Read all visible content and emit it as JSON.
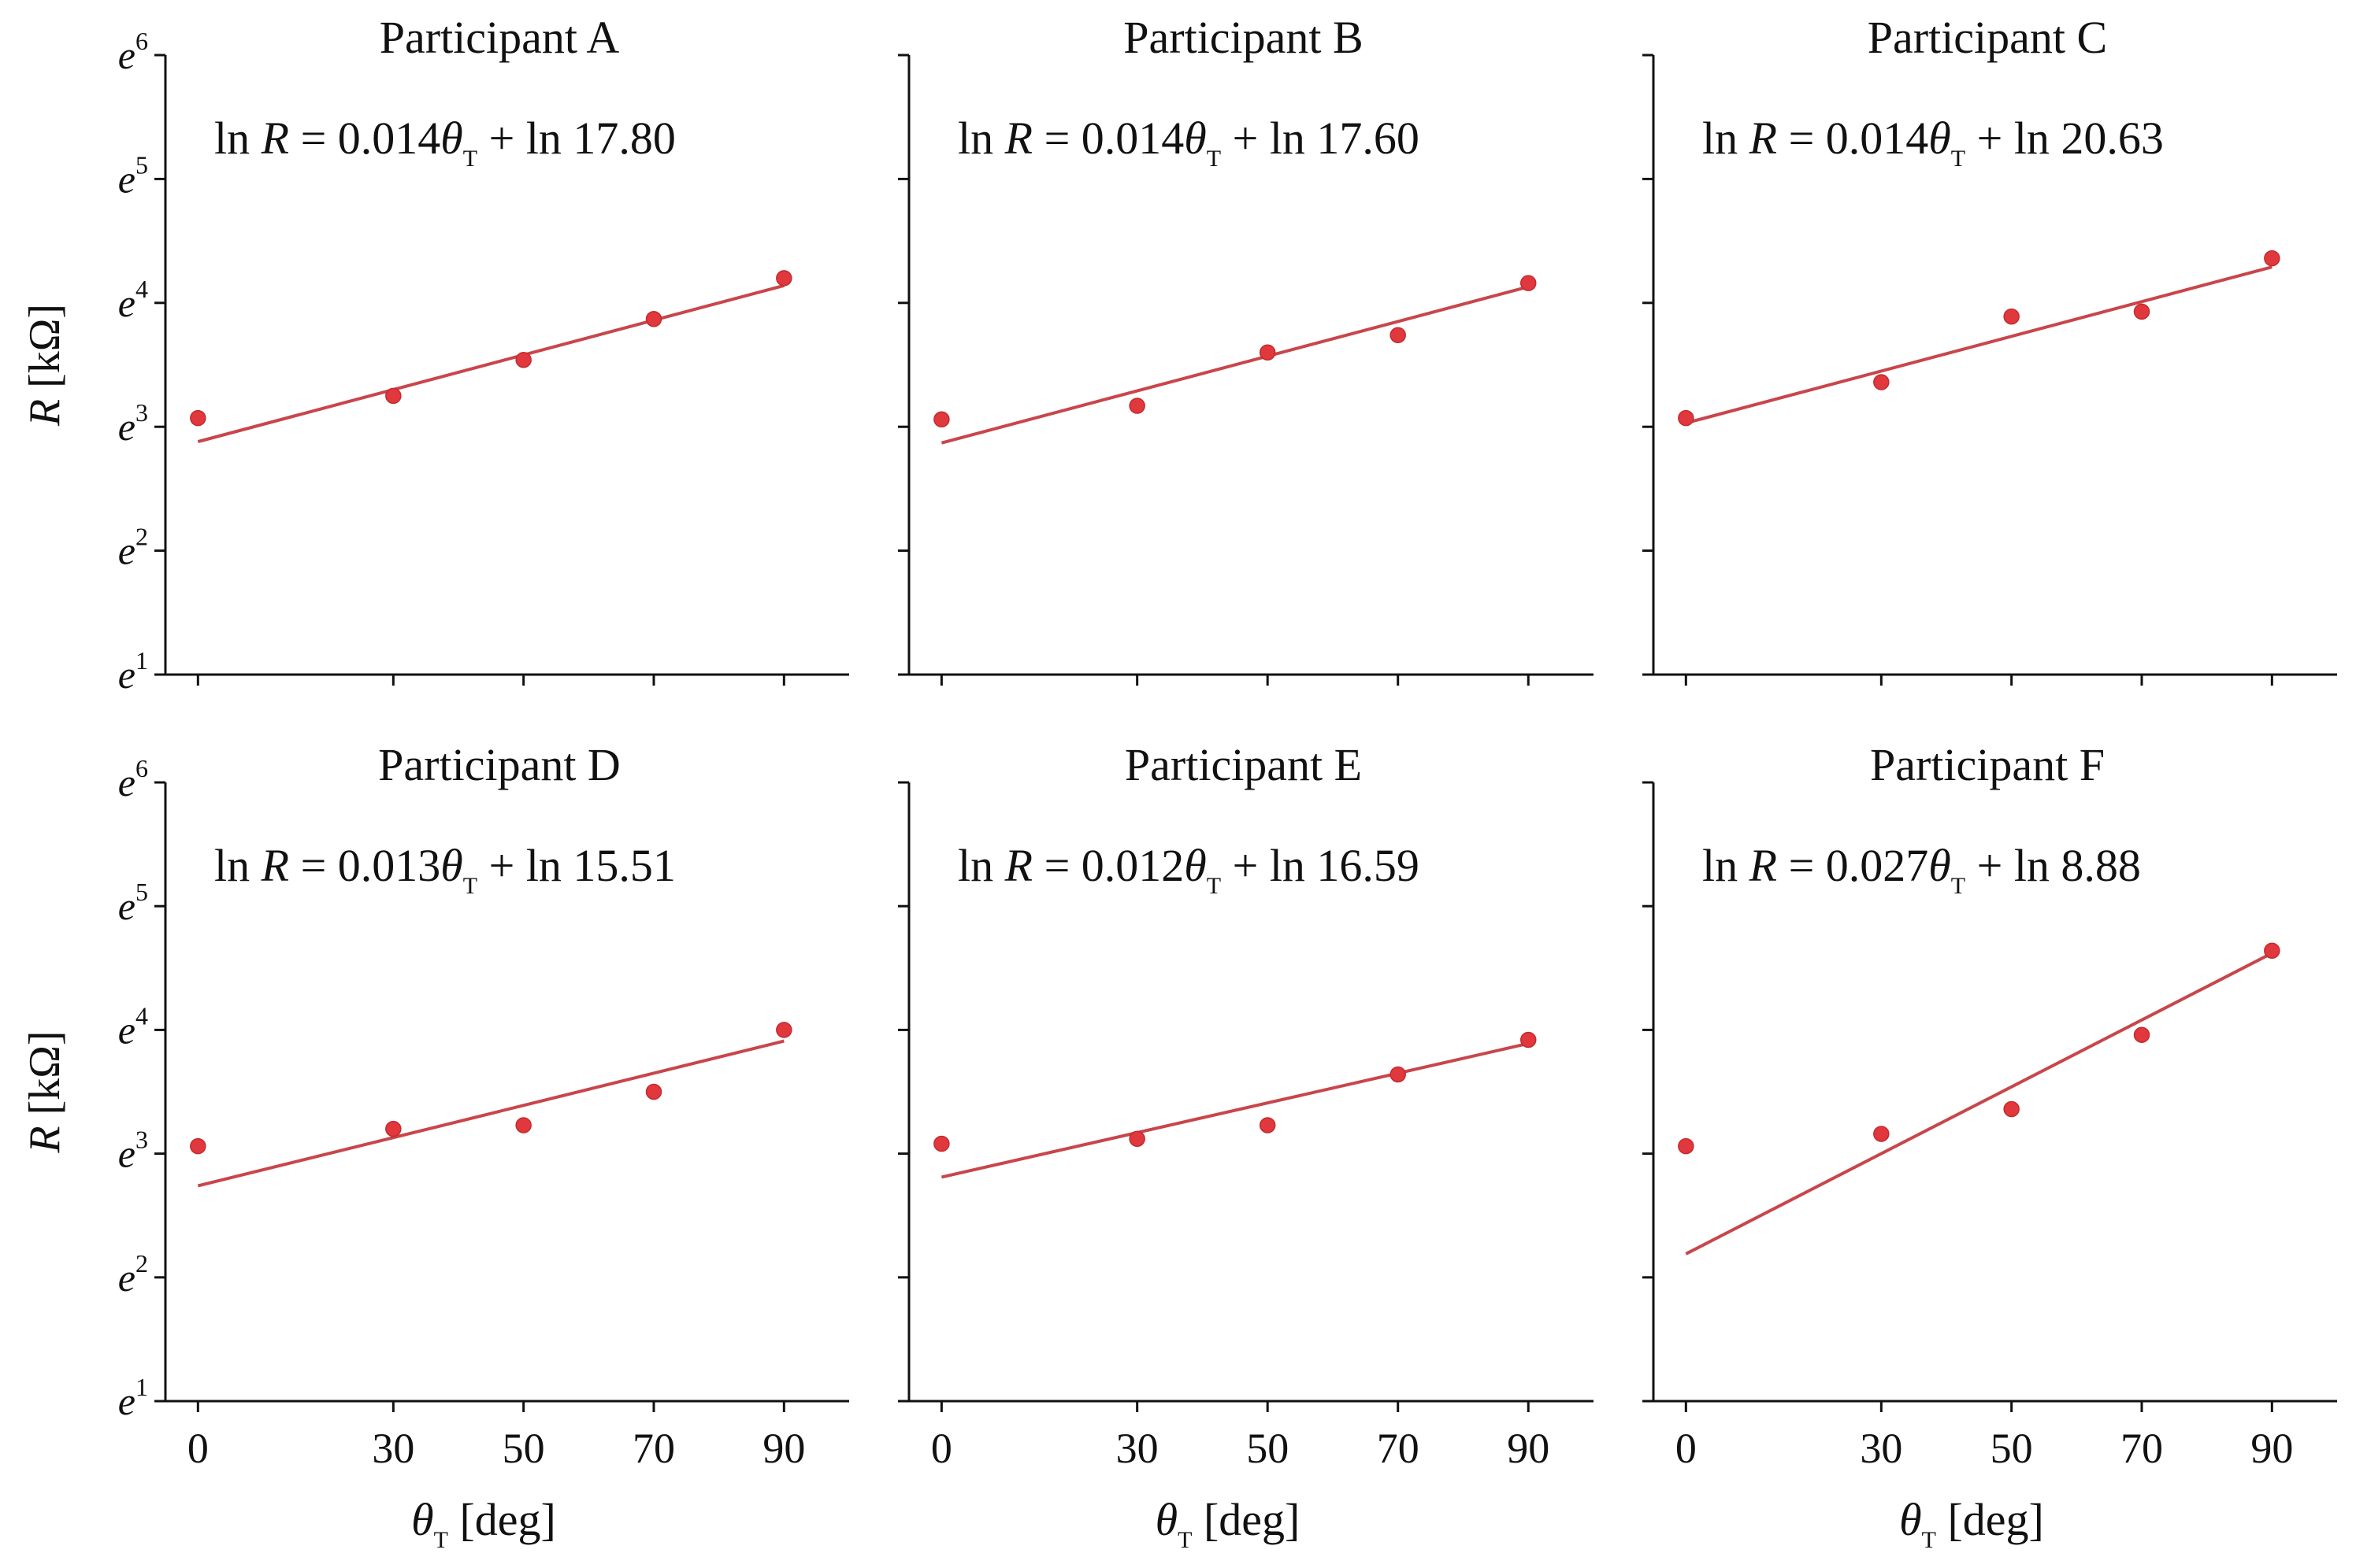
{
  "figure": {
    "ylabel": "R [kΩ]",
    "xlabel": "θT [deg]",
    "colors": {
      "point": "#e0383c",
      "line": "#c8464b",
      "axis": "#111111"
    }
  },
  "chart_data": [
    {
      "type": "scatter",
      "title": "Participant A",
      "equation": {
        "slope": "0.014",
        "intercept": "17.80"
      },
      "x": [
        0,
        30,
        50,
        70,
        90
      ],
      "y": [
        3.07,
        3.25,
        3.54,
        3.87,
        4.2
      ],
      "fit": {
        "x": [
          0,
          90
        ],
        "y": [
          2.88,
          4.14
        ]
      },
      "xticks": [
        0,
        30,
        50,
        70,
        90
      ],
      "yticks": [
        1,
        2,
        3,
        4,
        5,
        6
      ],
      "ylim": [
        1,
        6
      ],
      "xlim": [
        -5,
        100
      ]
    },
    {
      "type": "scatter",
      "title": "Participant B",
      "equation": {
        "slope": "0.014",
        "intercept": "17.60"
      },
      "x": [
        0,
        30,
        50,
        70,
        90
      ],
      "y": [
        3.06,
        3.17,
        3.6,
        3.74,
        4.16
      ],
      "fit": {
        "x": [
          0,
          90
        ],
        "y": [
          2.87,
          4.13
        ]
      },
      "xticks": [
        0,
        30,
        50,
        70,
        90
      ],
      "yticks": [
        1,
        2,
        3,
        4,
        5,
        6
      ],
      "ylim": [
        1,
        6
      ],
      "xlim": [
        -5,
        100
      ]
    },
    {
      "type": "scatter",
      "title": "Participant C",
      "equation": {
        "slope": "0.014",
        "intercept": "20.63"
      },
      "x": [
        0,
        30,
        50,
        70,
        90
      ],
      "y": [
        3.07,
        3.36,
        3.89,
        3.93,
        4.36
      ],
      "fit": {
        "x": [
          0,
          90
        ],
        "y": [
          3.03,
          4.29
        ]
      },
      "xticks": [
        0,
        30,
        50,
        70,
        90
      ],
      "yticks": [
        1,
        2,
        3,
        4,
        5,
        6
      ],
      "ylim": [
        1,
        6
      ],
      "xlim": [
        -5,
        100
      ]
    },
    {
      "type": "scatter",
      "title": "Participant D",
      "equation": {
        "slope": "0.013",
        "intercept": "15.51"
      },
      "x": [
        0,
        30,
        50,
        70,
        90
      ],
      "y": [
        3.06,
        3.2,
        3.23,
        3.5,
        4.0
      ],
      "fit": {
        "x": [
          0,
          90
        ],
        "y": [
          2.74,
          3.91
        ]
      },
      "xticks": [
        0,
        30,
        50,
        70,
        90
      ],
      "yticks": [
        1,
        2,
        3,
        4,
        5,
        6
      ],
      "ylim": [
        1,
        6
      ],
      "xlim": [
        -5,
        100
      ]
    },
    {
      "type": "scatter",
      "title": "Participant E",
      "equation": {
        "slope": "0.012",
        "intercept": "16.59"
      },
      "x": [
        0,
        30,
        50,
        70,
        90
      ],
      "y": [
        3.08,
        3.12,
        3.23,
        3.64,
        3.92
      ],
      "fit": {
        "x": [
          0,
          90
        ],
        "y": [
          2.81,
          3.89
        ]
      },
      "xticks": [
        0,
        30,
        50,
        70,
        90
      ],
      "yticks": [
        1,
        2,
        3,
        4,
        5,
        6
      ],
      "ylim": [
        1,
        6
      ],
      "xlim": [
        -5,
        100
      ]
    },
    {
      "type": "scatter",
      "title": "Participant F",
      "equation": {
        "slope": "0.027",
        "intercept": "8.88"
      },
      "x": [
        0,
        30,
        50,
        70,
        90
      ],
      "y": [
        3.06,
        3.16,
        3.36,
        3.96,
        4.64
      ],
      "fit": {
        "x": [
          0,
          90
        ],
        "y": [
          2.19,
          4.62
        ]
      },
      "xticks": [
        0,
        30,
        50,
        70,
        90
      ],
      "yticks": [
        1,
        2,
        3,
        4,
        5,
        6
      ],
      "ylim": [
        1,
        6
      ],
      "xlim": [
        -5,
        100
      ]
    }
  ]
}
